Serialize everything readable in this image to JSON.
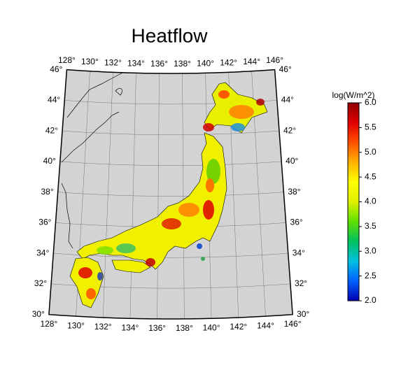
{
  "title": "Heatflow",
  "map": {
    "lon_ticks": [
      {
        "value": 128,
        "label": "128°"
      },
      {
        "value": 130,
        "label": "130°"
      },
      {
        "value": 132,
        "label": "132°"
      },
      {
        "value": 134,
        "label": "134°"
      },
      {
        "value": 136,
        "label": "136°"
      },
      {
        "value": 138,
        "label": "138°"
      },
      {
        "value": 140,
        "label": "140°"
      },
      {
        "value": 142,
        "label": "142°"
      },
      {
        "value": 144,
        "label": "144°"
      },
      {
        "value": 146,
        "label": "146°"
      }
    ],
    "lat_ticks": [
      {
        "value": 30,
        "label": "30°"
      },
      {
        "value": 32,
        "label": "32°"
      },
      {
        "value": 34,
        "label": "34°"
      },
      {
        "value": 36,
        "label": "36°"
      },
      {
        "value": 38,
        "label": "38°"
      },
      {
        "value": 40,
        "label": "40°"
      },
      {
        "value": 42,
        "label": "42°"
      },
      {
        "value": 44,
        "label": "44°"
      },
      {
        "value": 46,
        "label": "46°"
      }
    ]
  },
  "colorbar": {
    "label": "log(W/m^2)",
    "lim": [
      2,
      6
    ],
    "ticks": [
      {
        "value": 2,
        "label": "2.0"
      },
      2.5,
      {
        "value": 3,
        "label": "3.0"
      },
      3.5,
      {
        "value": 4,
        "label": "4.0"
      },
      4.5,
      {
        "value": 5,
        "label": "5.0"
      },
      5.5,
      {
        "value": 6,
        "label": "6.0"
      }
    ],
    "colors": [
      "#0000b0",
      "#0060ff",
      "#00c0e0",
      "#00c060",
      "#60e000",
      "#e0f000",
      "#ffff00",
      "#ffb000",
      "#ff5000",
      "#e00000",
      "#900000"
    ]
  }
}
